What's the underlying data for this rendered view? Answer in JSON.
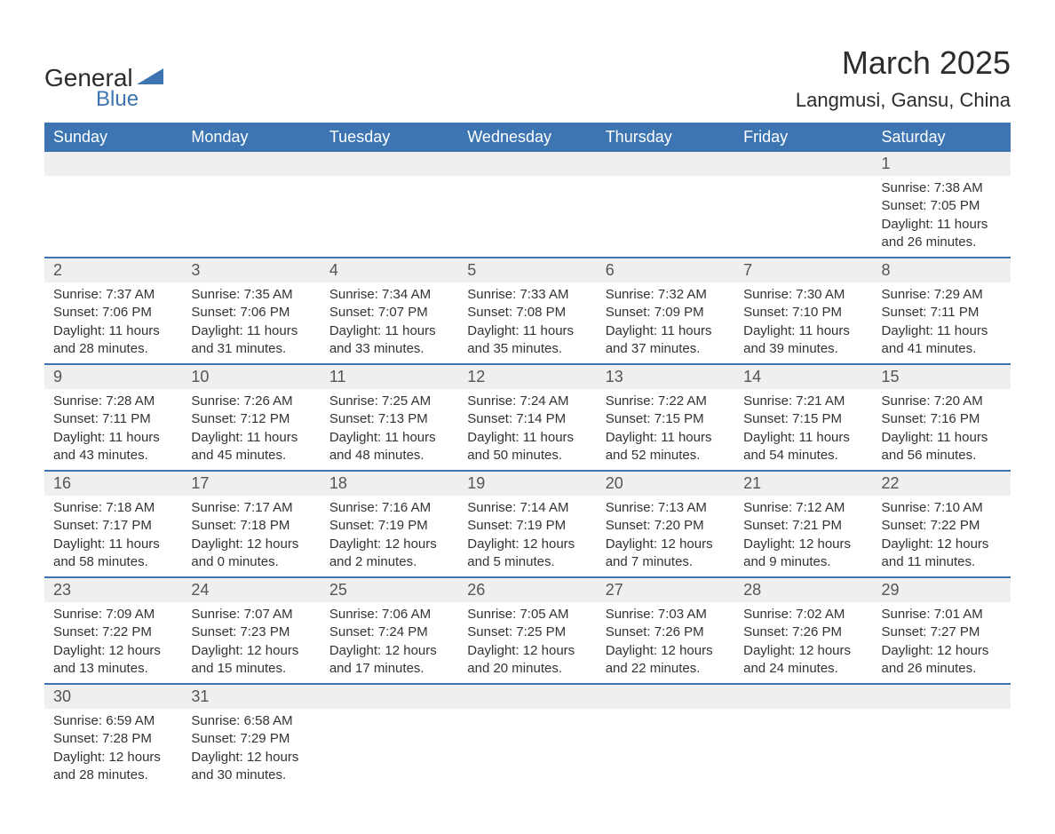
{
  "logo": {
    "text_general": "General",
    "text_blue": "Blue",
    "triangle_color": "#3d75b3"
  },
  "header": {
    "month_title": "March 2025",
    "location": "Langmusi, Gansu, China"
  },
  "calendar": {
    "header_bg": "#3d75b3",
    "header_fg": "#ffffff",
    "daynum_bg": "#efefef",
    "row_border_color": "#3d75b3",
    "text_color": "#333333",
    "day_labels": [
      "Sunday",
      "Monday",
      "Tuesday",
      "Wednesday",
      "Thursday",
      "Friday",
      "Saturday"
    ],
    "weeks": [
      [
        null,
        null,
        null,
        null,
        null,
        null,
        {
          "n": "1",
          "sunrise": "Sunrise: 7:38 AM",
          "sunset": "Sunset: 7:05 PM",
          "day1": "Daylight: 11 hours",
          "day2": "and 26 minutes."
        }
      ],
      [
        {
          "n": "2",
          "sunrise": "Sunrise: 7:37 AM",
          "sunset": "Sunset: 7:06 PM",
          "day1": "Daylight: 11 hours",
          "day2": "and 28 minutes."
        },
        {
          "n": "3",
          "sunrise": "Sunrise: 7:35 AM",
          "sunset": "Sunset: 7:06 PM",
          "day1": "Daylight: 11 hours",
          "day2": "and 31 minutes."
        },
        {
          "n": "4",
          "sunrise": "Sunrise: 7:34 AM",
          "sunset": "Sunset: 7:07 PM",
          "day1": "Daylight: 11 hours",
          "day2": "and 33 minutes."
        },
        {
          "n": "5",
          "sunrise": "Sunrise: 7:33 AM",
          "sunset": "Sunset: 7:08 PM",
          "day1": "Daylight: 11 hours",
          "day2": "and 35 minutes."
        },
        {
          "n": "6",
          "sunrise": "Sunrise: 7:32 AM",
          "sunset": "Sunset: 7:09 PM",
          "day1": "Daylight: 11 hours",
          "day2": "and 37 minutes."
        },
        {
          "n": "7",
          "sunrise": "Sunrise: 7:30 AM",
          "sunset": "Sunset: 7:10 PM",
          "day1": "Daylight: 11 hours",
          "day2": "and 39 minutes."
        },
        {
          "n": "8",
          "sunrise": "Sunrise: 7:29 AM",
          "sunset": "Sunset: 7:11 PM",
          "day1": "Daylight: 11 hours",
          "day2": "and 41 minutes."
        }
      ],
      [
        {
          "n": "9",
          "sunrise": "Sunrise: 7:28 AM",
          "sunset": "Sunset: 7:11 PM",
          "day1": "Daylight: 11 hours",
          "day2": "and 43 minutes."
        },
        {
          "n": "10",
          "sunrise": "Sunrise: 7:26 AM",
          "sunset": "Sunset: 7:12 PM",
          "day1": "Daylight: 11 hours",
          "day2": "and 45 minutes."
        },
        {
          "n": "11",
          "sunrise": "Sunrise: 7:25 AM",
          "sunset": "Sunset: 7:13 PM",
          "day1": "Daylight: 11 hours",
          "day2": "and 48 minutes."
        },
        {
          "n": "12",
          "sunrise": "Sunrise: 7:24 AM",
          "sunset": "Sunset: 7:14 PM",
          "day1": "Daylight: 11 hours",
          "day2": "and 50 minutes."
        },
        {
          "n": "13",
          "sunrise": "Sunrise: 7:22 AM",
          "sunset": "Sunset: 7:15 PM",
          "day1": "Daylight: 11 hours",
          "day2": "and 52 minutes."
        },
        {
          "n": "14",
          "sunrise": "Sunrise: 7:21 AM",
          "sunset": "Sunset: 7:15 PM",
          "day1": "Daylight: 11 hours",
          "day2": "and 54 minutes."
        },
        {
          "n": "15",
          "sunrise": "Sunrise: 7:20 AM",
          "sunset": "Sunset: 7:16 PM",
          "day1": "Daylight: 11 hours",
          "day2": "and 56 minutes."
        }
      ],
      [
        {
          "n": "16",
          "sunrise": "Sunrise: 7:18 AM",
          "sunset": "Sunset: 7:17 PM",
          "day1": "Daylight: 11 hours",
          "day2": "and 58 minutes."
        },
        {
          "n": "17",
          "sunrise": "Sunrise: 7:17 AM",
          "sunset": "Sunset: 7:18 PM",
          "day1": "Daylight: 12 hours",
          "day2": "and 0 minutes."
        },
        {
          "n": "18",
          "sunrise": "Sunrise: 7:16 AM",
          "sunset": "Sunset: 7:19 PM",
          "day1": "Daylight: 12 hours",
          "day2": "and 2 minutes."
        },
        {
          "n": "19",
          "sunrise": "Sunrise: 7:14 AM",
          "sunset": "Sunset: 7:19 PM",
          "day1": "Daylight: 12 hours",
          "day2": "and 5 minutes."
        },
        {
          "n": "20",
          "sunrise": "Sunrise: 7:13 AM",
          "sunset": "Sunset: 7:20 PM",
          "day1": "Daylight: 12 hours",
          "day2": "and 7 minutes."
        },
        {
          "n": "21",
          "sunrise": "Sunrise: 7:12 AM",
          "sunset": "Sunset: 7:21 PM",
          "day1": "Daylight: 12 hours",
          "day2": "and 9 minutes."
        },
        {
          "n": "22",
          "sunrise": "Sunrise: 7:10 AM",
          "sunset": "Sunset: 7:22 PM",
          "day1": "Daylight: 12 hours",
          "day2": "and 11 minutes."
        }
      ],
      [
        {
          "n": "23",
          "sunrise": "Sunrise: 7:09 AM",
          "sunset": "Sunset: 7:22 PM",
          "day1": "Daylight: 12 hours",
          "day2": "and 13 minutes."
        },
        {
          "n": "24",
          "sunrise": "Sunrise: 7:07 AM",
          "sunset": "Sunset: 7:23 PM",
          "day1": "Daylight: 12 hours",
          "day2": "and 15 minutes."
        },
        {
          "n": "25",
          "sunrise": "Sunrise: 7:06 AM",
          "sunset": "Sunset: 7:24 PM",
          "day1": "Daylight: 12 hours",
          "day2": "and 17 minutes."
        },
        {
          "n": "26",
          "sunrise": "Sunrise: 7:05 AM",
          "sunset": "Sunset: 7:25 PM",
          "day1": "Daylight: 12 hours",
          "day2": "and 20 minutes."
        },
        {
          "n": "27",
          "sunrise": "Sunrise: 7:03 AM",
          "sunset": "Sunset: 7:26 PM",
          "day1": "Daylight: 12 hours",
          "day2": "and 22 minutes."
        },
        {
          "n": "28",
          "sunrise": "Sunrise: 7:02 AM",
          "sunset": "Sunset: 7:26 PM",
          "day1": "Daylight: 12 hours",
          "day2": "and 24 minutes."
        },
        {
          "n": "29",
          "sunrise": "Sunrise: 7:01 AM",
          "sunset": "Sunset: 7:27 PM",
          "day1": "Daylight: 12 hours",
          "day2": "and 26 minutes."
        }
      ],
      [
        {
          "n": "30",
          "sunrise": "Sunrise: 6:59 AM",
          "sunset": "Sunset: 7:28 PM",
          "day1": "Daylight: 12 hours",
          "day2": "and 28 minutes."
        },
        {
          "n": "31",
          "sunrise": "Sunrise: 6:58 AM",
          "sunset": "Sunset: 7:29 PM",
          "day1": "Daylight: 12 hours",
          "day2": "and 30 minutes."
        },
        null,
        null,
        null,
        null,
        null
      ]
    ]
  }
}
